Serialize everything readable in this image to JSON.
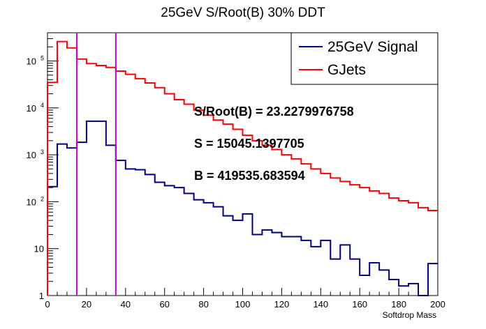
{
  "chart_data": {
    "type": "line",
    "title": "25GeV S/Root(B) 30% DDT",
    "xlabel": "Softdrop Mass",
    "ylabel": "",
    "xlim": [
      0,
      200
    ],
    "ylim": [
      1,
      400000
    ],
    "yscale": "log",
    "x_ticks": [
      "0",
      "20",
      "40",
      "60",
      "80",
      "100",
      "120",
      "140",
      "160",
      "180",
      "200"
    ],
    "y_ticks": [
      {
        "value": 1,
        "label": "1"
      },
      {
        "value": 10,
        "label": "10"
      },
      {
        "value": 100,
        "label": "10",
        "exp": "2"
      },
      {
        "value": 1000,
        "label": "10",
        "exp": "3"
      },
      {
        "value": 10000,
        "label": "10",
        "exp": "4"
      },
      {
        "value": 100000,
        "label": "10",
        "exp": "5"
      }
    ],
    "bin_width": 5,
    "bin_edges_start": 0,
    "series": [
      {
        "name": "25GeV Signal",
        "color": "#000080",
        "values": [
          210,
          1700,
          1400,
          1850,
          5200,
          5200,
          1600,
          760,
          500,
          480,
          380,
          260,
          220,
          200,
          150,
          110,
          95,
          78,
          50,
          40,
          55,
          20,
          25,
          22,
          18,
          18,
          15,
          11,
          15,
          6,
          12,
          6,
          2.7,
          5,
          3.5,
          2.2,
          1.6,
          1.8,
          0.9,
          4.8
        ]
      },
      {
        "name": "GJets",
        "color": "#ff0000",
        "values": [
          35000,
          260000,
          190000,
          110000,
          88000,
          80000,
          73000,
          61000,
          52000,
          42000,
          34000,
          27000,
          20000,
          15000,
          12000,
          9000,
          7000,
          5500,
          4500,
          3500,
          2600,
          2000,
          1600,
          1300,
          1000,
          820,
          640,
          500,
          400,
          320,
          270,
          230,
          200,
          170,
          150,
          120,
          105,
          95,
          75,
          65
        ]
      }
    ],
    "vertical_lines": [
      {
        "x": 15,
        "color": "#cc00cc"
      },
      {
        "x": 35,
        "color": "#cc00cc"
      }
    ],
    "legend": {
      "placement": "top-right"
    },
    "annotations": [
      "S/Root(B) = 23.2279976758",
      "S = 15045.1397705",
      "B = 419535.683594"
    ]
  }
}
